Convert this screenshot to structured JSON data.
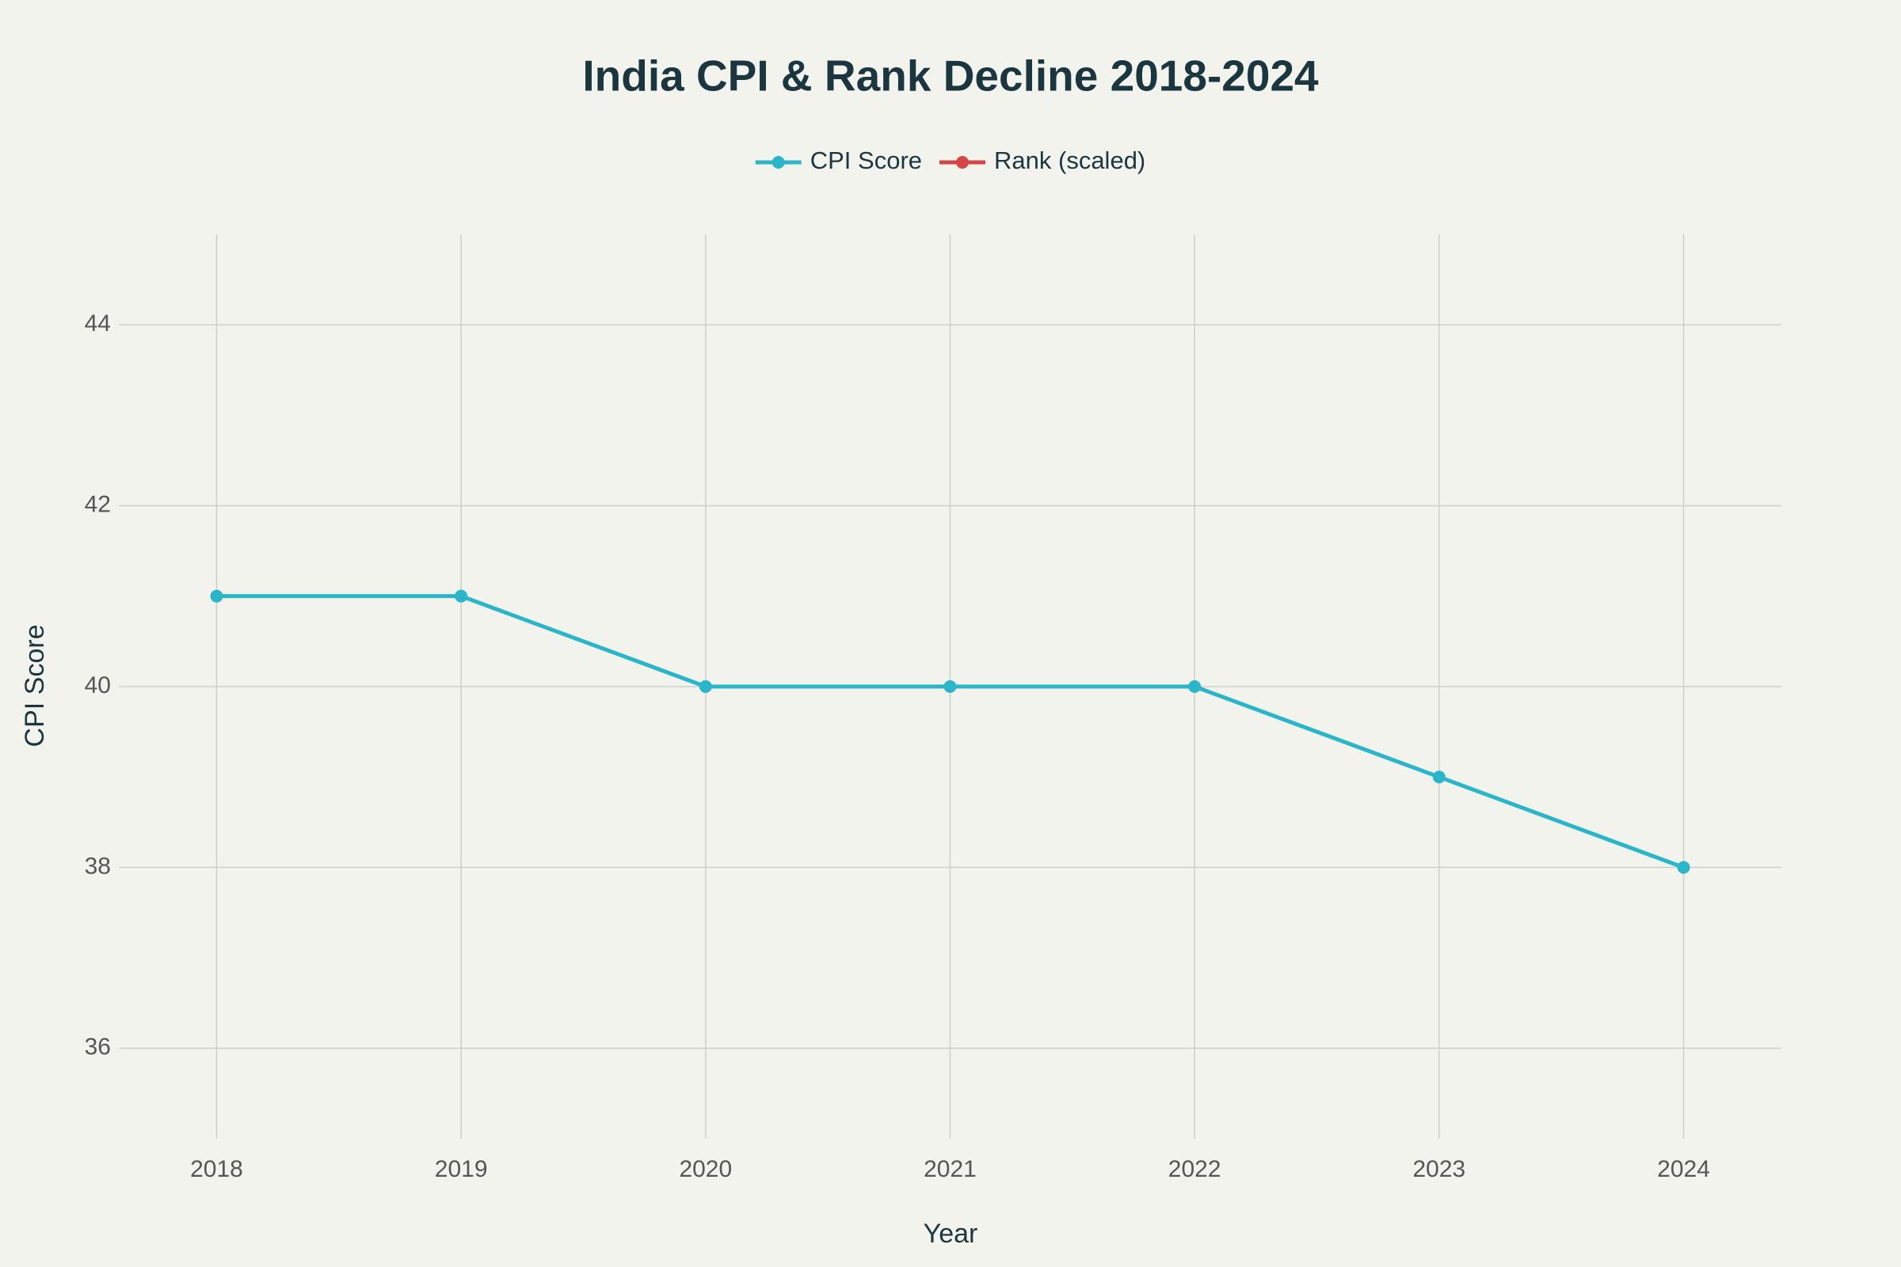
{
  "chart_data": {
    "type": "line",
    "title": "India CPI & Rank Decline 2018-2024",
    "x_label": "Year",
    "y_label": "CPI Score",
    "x": [
      2018,
      2019,
      2020,
      2021,
      2022,
      2023,
      2024
    ],
    "series": [
      {
        "name": "CPI Score",
        "color": "#2ab5c8",
        "values": [
          41,
          41,
          40,
          40,
          40,
          39,
          38
        ]
      },
      {
        "name": "Rank (scaled)",
        "color": "#d44545",
        "values": [
          null,
          null,
          null,
          null,
          null,
          null,
          null
        ]
      }
    ],
    "xlim": [
      2017.6,
      2024.4
    ],
    "xticks": [
      2018,
      2019,
      2020,
      2021,
      2022,
      2023,
      2024
    ],
    "ylim": [
      35,
      45
    ],
    "yticks": [
      36,
      38,
      40,
      42,
      44
    ],
    "grid": true,
    "legend": "top"
  }
}
